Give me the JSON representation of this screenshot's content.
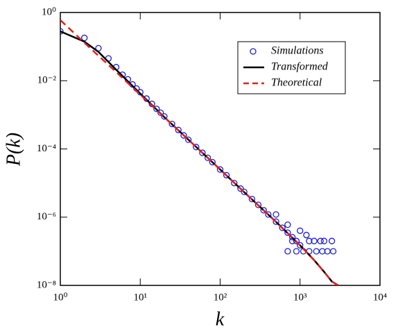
{
  "chart_data": {
    "type": "line",
    "xlabel": "k",
    "ylabel": "P(k)",
    "log_x": true,
    "log_y": true,
    "xlim": [
      1,
      10000
    ],
    "xticks": [
      {
        "value": 1,
        "label": "10⁰"
      },
      {
        "value": 10,
        "label": "10¹"
      },
      {
        "value": 100,
        "label": "10²"
      },
      {
        "value": 1000,
        "label": "10³"
      },
      {
        "value": 10000,
        "label": "10⁴"
      }
    ],
    "ylim": [
      1e-08,
      1
    ],
    "yticks": [
      {
        "value": 1e-08,
        "label": "10⁻⁸"
      },
      {
        "value": 1e-06,
        "label": "10⁻⁶"
      },
      {
        "value": 0.0001,
        "label": "10⁻⁴"
      },
      {
        "value": 0.01,
        "label": "10⁻²"
      },
      {
        "value": 1,
        "label": "10⁰"
      }
    ],
    "legend": "upper right",
    "series": [
      {
        "name": "Simulations",
        "color": "#1a1adf",
        "style": "markers",
        "x": [
          1,
          2,
          3,
          4,
          5,
          6,
          7,
          8,
          9,
          10,
          12,
          14,
          16,
          18,
          20,
          25,
          30,
          35,
          40,
          50,
          60,
          70,
          80,
          100,
          120,
          150,
          180,
          200,
          250,
          300,
          350,
          400,
          500,
          600,
          700,
          800,
          900,
          1000,
          500,
          700,
          1000,
          1200,
          1500,
          2000,
          2500,
          700,
          900,
          1100,
          1300,
          1600,
          1900,
          2200,
          2600,
          800,
          1300,
          1800
        ],
        "values": [
          0.28,
          0.18,
          0.09,
          0.045,
          0.025,
          0.015,
          0.011,
          0.0078,
          0.0059,
          0.0046,
          0.003,
          0.0021,
          0.0015,
          0.00115,
          0.0009,
          0.00054,
          0.00036,
          0.00025,
          0.000186,
          0.000114,
          7.7e-05,
          5.5e-05,
          4.1e-05,
          2.5e-05,
          1.7e-05,
          1e-05,
          6.9e-06,
          5.5e-06,
          3.4e-06,
          2.3e-06,
          1.6e-06,
          1.2e-06,
          7.4e-07,
          4.9e-07,
          3.5e-07,
          2.6e-07,
          2e-07,
          1.5e-07,
          1.2e-06,
          6e-07,
          4e-07,
          3e-07,
          2e-07,
          2e-07,
          2e-07,
          1e-07,
          1e-07,
          1e-07,
          1e-07,
          1e-07,
          1e-07,
          1e-07,
          1e-07,
          2e-07,
          2e-07,
          2e-07
        ]
      },
      {
        "name": "Transformed",
        "color": "#000000",
        "style": "solid",
        "x": [
          1,
          2,
          3,
          5,
          10,
          20,
          50,
          100,
          200,
          500,
          1000,
          1500,
          2000,
          2500,
          3000
        ],
        "values": [
          0.28,
          0.14,
          0.07,
          0.021,
          0.0042,
          0.00086,
          0.000115,
          2.5e-05,
          5.4e-06,
          7.3e-07,
          1.5e-07,
          5.5e-08,
          2.5e-08,
          1.3e-08,
          1e-08
        ]
      },
      {
        "name": "Theoretical",
        "color": "#e0201b",
        "style": "dashed",
        "x": [
          1,
          2,
          3,
          5,
          10,
          20,
          50,
          100,
          200,
          500,
          1000,
          1500,
          2000,
          2500,
          3000
        ],
        "values": [
          0.6,
          0.13,
          0.054,
          0.018,
          0.0039,
          0.00085,
          0.000115,
          2.5e-05,
          5.4e-06,
          7.3e-07,
          1.5e-07,
          5.5e-08,
          2.5e-08,
          1.3e-08,
          1e-08
        ]
      }
    ]
  }
}
